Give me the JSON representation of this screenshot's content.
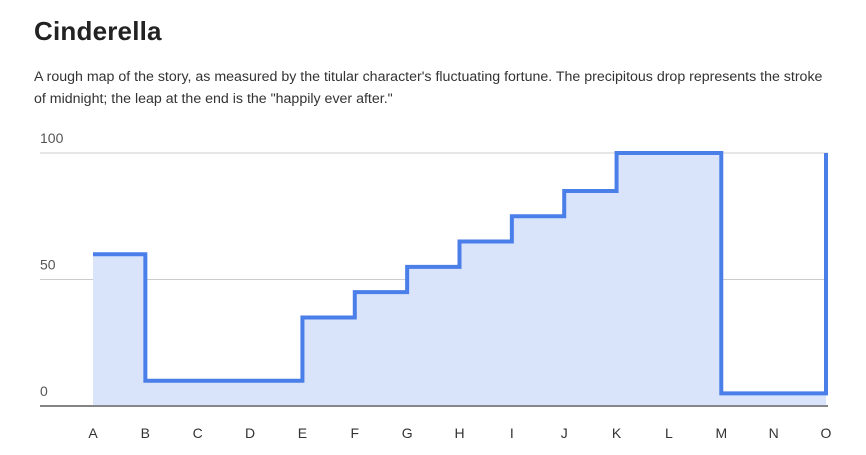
{
  "header": {
    "title": "Cinderella",
    "subtitle": "A rough map of the story, as measured by the titular character's fluctuating fortune. The precipitous drop represents the stroke of midnight; the leap at the end is the \"happily ever after.\""
  },
  "colors": {
    "line": "#4a7ee8",
    "fill": "#d9e4fb",
    "grid": "#cccccc",
    "baseline": "#555555"
  },
  "chart_data": {
    "type": "area",
    "step": true,
    "title": "Cinderella",
    "categories": [
      "A",
      "B",
      "C",
      "D",
      "E",
      "F",
      "G",
      "H",
      "I",
      "J",
      "K",
      "L",
      "M",
      "N",
      "O"
    ],
    "values": [
      60,
      10,
      10,
      10,
      35,
      45,
      55,
      65,
      75,
      85,
      100,
      100,
      5,
      5,
      100
    ],
    "y_ticks": [
      "0",
      "50",
      "100"
    ],
    "ylim": [
      0,
      100
    ],
    "xlabel": "",
    "ylabel": "",
    "grid": true,
    "legend": "none"
  }
}
